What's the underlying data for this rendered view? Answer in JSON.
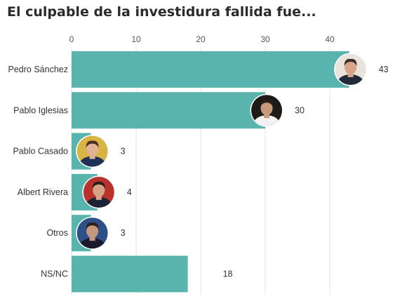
{
  "chart_data": {
    "type": "bar",
    "orientation": "horizontal",
    "title": "El culpable de la investidura fallida fue...",
    "categories": [
      "Pedro Sánchez",
      "Pablo Iglesias",
      "Pablo Casado",
      "Albert Rivera",
      "Otros",
      "NS/NC"
    ],
    "values": [
      43,
      30,
      3,
      4,
      3,
      18
    ],
    "xlim": [
      0,
      45
    ],
    "xticks": [
      0,
      10,
      20,
      30,
      40
    ],
    "xaxis_position": "top",
    "grid": true,
    "bar_color": "#5ab4ae",
    "avatars": [
      {
        "category": "Pedro Sánchez",
        "icon": "person-photo-icon"
      },
      {
        "category": "Pablo Iglesias",
        "icon": "person-photo-icon"
      },
      {
        "category": "Pablo Casado",
        "icon": "person-photo-icon"
      },
      {
        "category": "Albert Rivera",
        "icon": "person-photo-icon"
      },
      {
        "category": "Otros",
        "icon": "person-photo-icon"
      }
    ]
  }
}
